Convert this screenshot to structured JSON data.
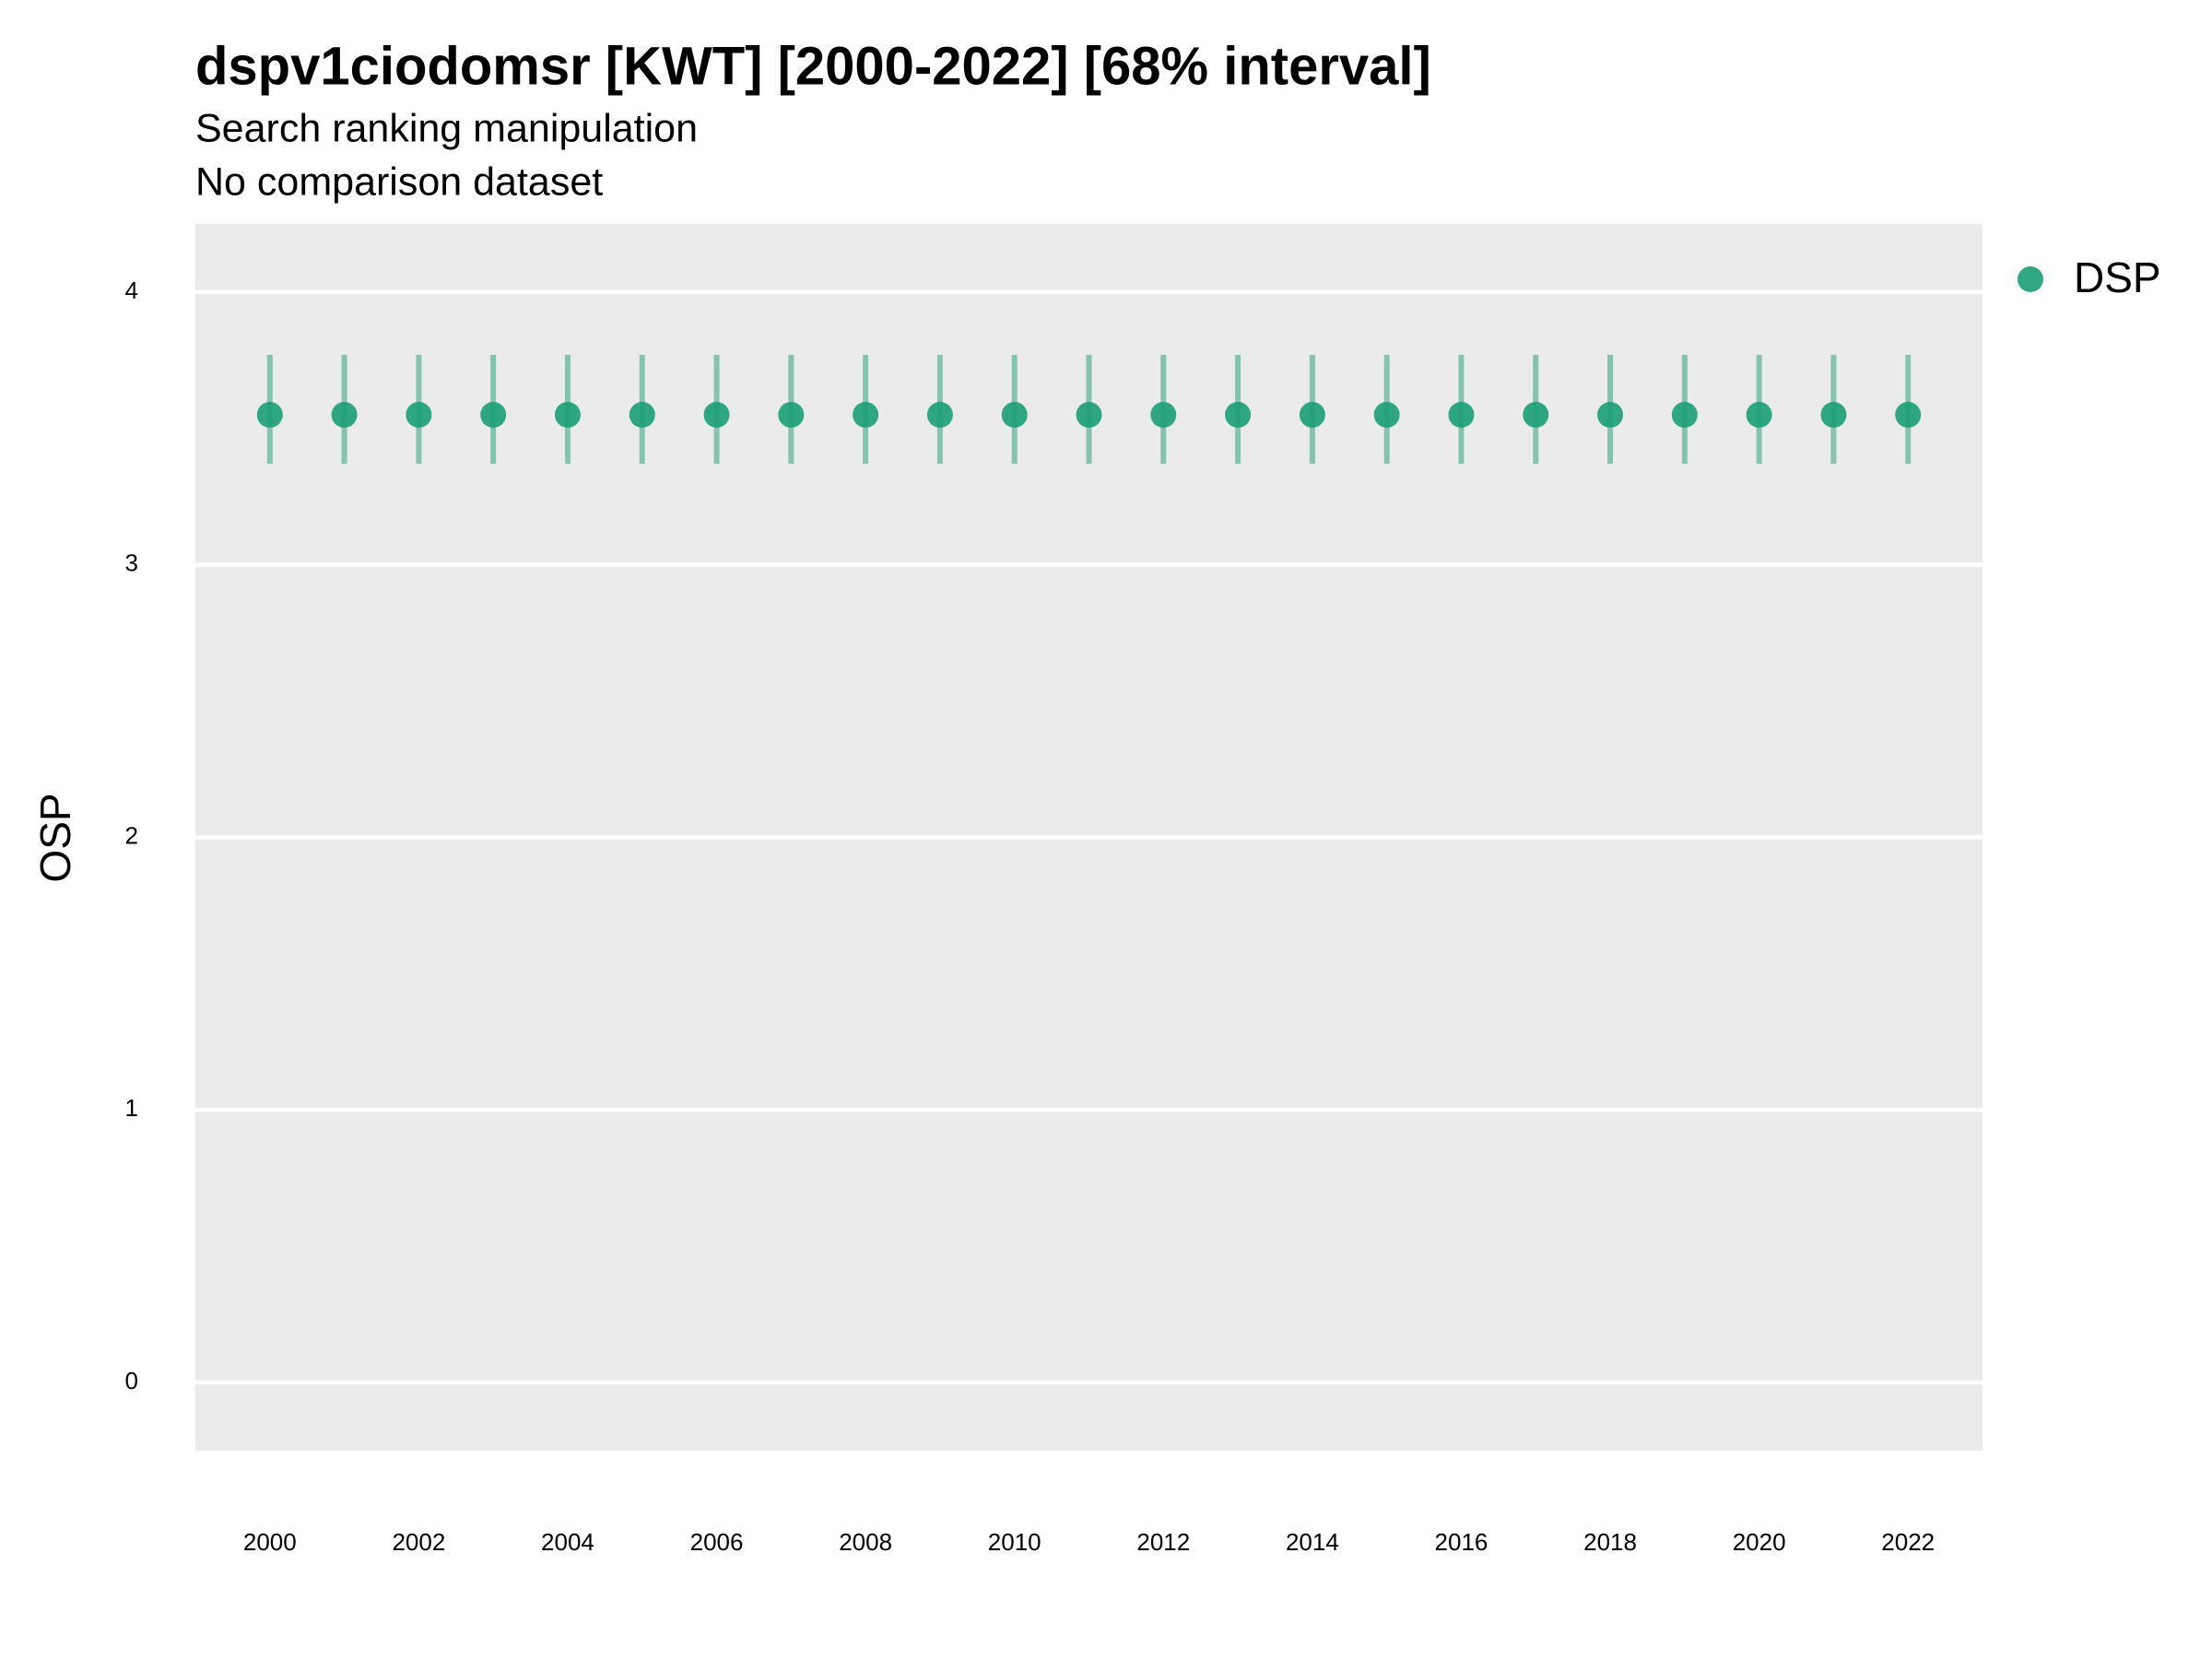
{
  "chart_data": {
    "type": "pointrange",
    "title": "dspv1ciodomsr [KWT] [2000-2022] [68% interval]",
    "subtitle": [
      "Search ranking manipulation",
      "No comparison dataset"
    ],
    "y_label": "OSP",
    "x": [
      2000,
      2001,
      2002,
      2003,
      2004,
      2005,
      2006,
      2007,
      2008,
      2009,
      2010,
      2011,
      2012,
      2013,
      2014,
      2015,
      2016,
      2017,
      2018,
      2019,
      2020,
      2021,
      2022
    ],
    "series": [
      {
        "name": "DSP",
        "color": "#1b9e77",
        "values": [
          3.55,
          3.55,
          3.55,
          3.55,
          3.55,
          3.55,
          3.55,
          3.55,
          3.55,
          3.55,
          3.55,
          3.55,
          3.55,
          3.55,
          3.55,
          3.55,
          3.55,
          3.55,
          3.55,
          3.55,
          3.55,
          3.55,
          3.55
        ],
        "lower": [
          3.37,
          3.37,
          3.37,
          3.37,
          3.37,
          3.37,
          3.37,
          3.37,
          3.37,
          3.37,
          3.37,
          3.37,
          3.37,
          3.37,
          3.37,
          3.37,
          3.37,
          3.37,
          3.37,
          3.37,
          3.37,
          3.37,
          3.37
        ],
        "upper": [
          3.77,
          3.77,
          3.77,
          3.77,
          3.77,
          3.77,
          3.77,
          3.77,
          3.77,
          3.77,
          3.77,
          3.77,
          3.77,
          3.77,
          3.77,
          3.77,
          3.77,
          3.77,
          3.77,
          3.77,
          3.77,
          3.77,
          3.77
        ]
      }
    ],
    "xlim": [
      1999,
      2023
    ],
    "xticks": [
      2000,
      2002,
      2004,
      2006,
      2008,
      2010,
      2012,
      2014,
      2016,
      2018,
      2020,
      2022
    ],
    "ylim": [
      -0.25,
      4.25
    ],
    "yticks": [
      0,
      1,
      2,
      3,
      4
    ],
    "grid": true,
    "legend": "right"
  }
}
